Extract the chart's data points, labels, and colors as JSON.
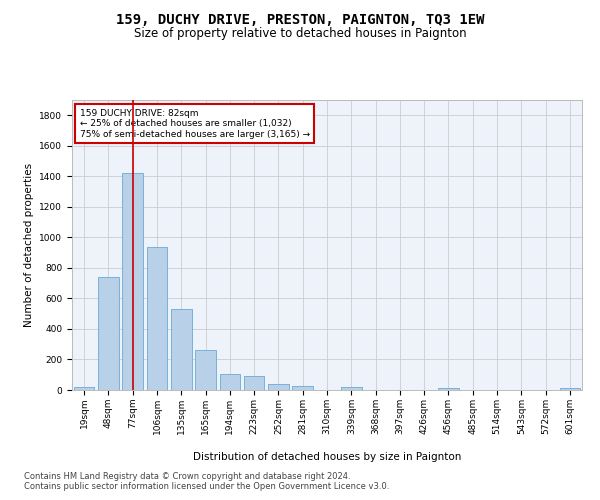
{
  "title": "159, DUCHY DRIVE, PRESTON, PAIGNTON, TQ3 1EW",
  "subtitle": "Size of property relative to detached houses in Paignton",
  "xlabel": "Distribution of detached houses by size in Paignton",
  "ylabel": "Number of detached properties",
  "categories": [
    "19sqm",
    "48sqm",
    "77sqm",
    "106sqm",
    "135sqm",
    "165sqm",
    "194sqm",
    "223sqm",
    "252sqm",
    "281sqm",
    "310sqm",
    "339sqm",
    "368sqm",
    "397sqm",
    "426sqm",
    "456sqm",
    "485sqm",
    "514sqm",
    "543sqm",
    "572sqm",
    "601sqm"
  ],
  "values": [
    22,
    740,
    1420,
    935,
    530,
    265,
    105,
    93,
    40,
    27,
    0,
    17,
    0,
    0,
    0,
    13,
    0,
    0,
    0,
    0,
    13
  ],
  "bar_color": "#b8d0e8",
  "bar_edge_color": "#6aaad4",
  "vline_x_index": 2,
  "vline_color": "#cc0000",
  "annotation_text": "159 DUCHY DRIVE: 82sqm\n← 25% of detached houses are smaller (1,032)\n75% of semi-detached houses are larger (3,165) →",
  "annotation_bbox_facecolor": "#ffffff",
  "annotation_bbox_edgecolor": "#cc0000",
  "ylim": [
    0,
    1900
  ],
  "yticks": [
    0,
    200,
    400,
    600,
    800,
    1000,
    1200,
    1400,
    1600,
    1800
  ],
  "grid_color": "#cccccc",
  "background_color": "#eef2fa",
  "footer_line1": "Contains HM Land Registry data © Crown copyright and database right 2024.",
  "footer_line2": "Contains public sector information licensed under the Open Government Licence v3.0.",
  "title_fontsize": 10,
  "subtitle_fontsize": 8.5,
  "axis_label_fontsize": 7.5,
  "tick_fontsize": 6.5,
  "annotation_fontsize": 6.5,
  "footer_fontsize": 6.0
}
